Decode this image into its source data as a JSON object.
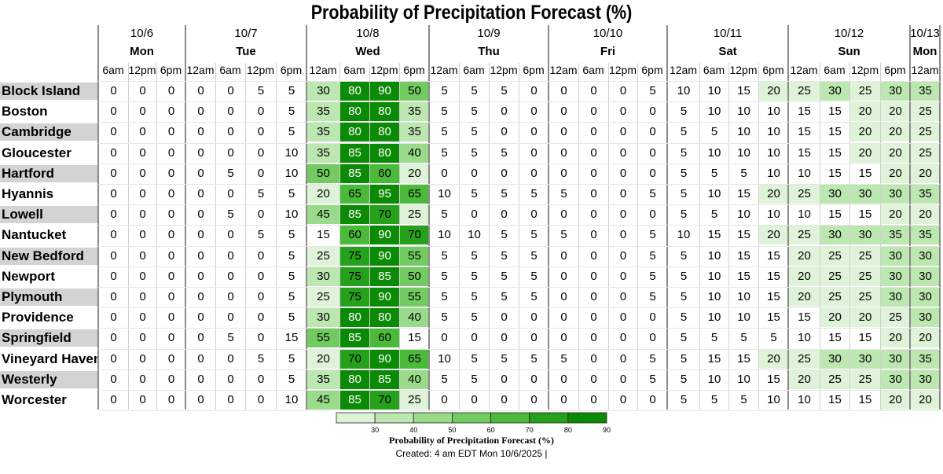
{
  "chart_data": {
    "type": "table",
    "title": "Probability of Precipitation Forecast (%)",
    "date_groups": [
      {
        "date": "10/6",
        "day": "Mon",
        "span": 3
      },
      {
        "date": "10/7",
        "day": "Tue",
        "span": 4
      },
      {
        "date": "10/8",
        "day": "Wed",
        "span": 4
      },
      {
        "date": "10/9",
        "day": "Thu",
        "span": 4
      },
      {
        "date": "10/10",
        "day": "Fri",
        "span": 4
      },
      {
        "date": "10/11",
        "day": "Sat",
        "span": 4
      },
      {
        "date": "10/12",
        "day": "Sun",
        "span": 4
      },
      {
        "date": "10/13",
        "day": "Mon",
        "span": 1
      }
    ],
    "times": [
      "6am",
      "12pm",
      "6pm",
      "12am",
      "6am",
      "12pm",
      "6pm",
      "12am",
      "6am",
      "12pm",
      "6pm",
      "12am",
      "6am",
      "12pm",
      "6pm",
      "12am",
      "6am",
      "12pm",
      "6pm",
      "12am",
      "6am",
      "12pm",
      "6pm",
      "12am",
      "6am",
      "12pm",
      "6pm",
      "12am"
    ],
    "rows": [
      {
        "city": "Block Island",
        "values": [
          0,
          0,
          0,
          0,
          0,
          5,
          5,
          30,
          80,
          90,
          50,
          5,
          5,
          5,
          0,
          0,
          0,
          0,
          5,
          10,
          10,
          15,
          20,
          25,
          30,
          25,
          30,
          35
        ]
      },
      {
        "city": "Boston",
        "values": [
          0,
          0,
          0,
          0,
          0,
          0,
          5,
          35,
          80,
          80,
          35,
          5,
          5,
          0,
          0,
          0,
          0,
          0,
          0,
          5,
          10,
          10,
          10,
          15,
          15,
          20,
          20,
          25
        ]
      },
      {
        "city": "Cambridge",
        "values": [
          0,
          0,
          0,
          0,
          0,
          0,
          5,
          35,
          80,
          80,
          35,
          5,
          5,
          0,
          0,
          0,
          0,
          0,
          0,
          5,
          5,
          10,
          10,
          15,
          15,
          20,
          20,
          25
        ]
      },
      {
        "city": "Gloucester",
        "values": [
          0,
          0,
          0,
          0,
          0,
          0,
          10,
          35,
          85,
          80,
          40,
          5,
          5,
          5,
          0,
          0,
          0,
          0,
          0,
          5,
          10,
          10,
          10,
          15,
          15,
          20,
          20,
          25
        ]
      },
      {
        "city": "Hartford",
        "values": [
          0,
          0,
          0,
          0,
          5,
          0,
          10,
          50,
          85,
          60,
          20,
          0,
          0,
          0,
          0,
          0,
          0,
          0,
          0,
          5,
          5,
          5,
          10,
          10,
          15,
          15,
          20,
          20
        ]
      },
      {
        "city": "Hyannis",
        "values": [
          0,
          0,
          0,
          0,
          0,
          5,
          5,
          20,
          65,
          95,
          65,
          10,
          5,
          5,
          5,
          5,
          0,
          0,
          5,
          5,
          10,
          15,
          20,
          25,
          30,
          30,
          30,
          35
        ]
      },
      {
        "city": "Lowell",
        "values": [
          0,
          0,
          0,
          0,
          5,
          0,
          10,
          45,
          85,
          70,
          25,
          5,
          0,
          0,
          0,
          0,
          0,
          0,
          0,
          5,
          5,
          10,
          10,
          10,
          15,
          15,
          20,
          20
        ]
      },
      {
        "city": "Nantucket",
        "values": [
          0,
          0,
          0,
          0,
          0,
          5,
          5,
          15,
          60,
          90,
          70,
          10,
          10,
          5,
          5,
          5,
          0,
          0,
          5,
          10,
          15,
          15,
          20,
          25,
          30,
          30,
          35,
          35
        ]
      },
      {
        "city": "New Bedford",
        "values": [
          0,
          0,
          0,
          0,
          0,
          0,
          5,
          25,
          75,
          90,
          55,
          5,
          5,
          5,
          5,
          0,
          0,
          0,
          5,
          5,
          10,
          15,
          15,
          20,
          25,
          25,
          30,
          30
        ]
      },
      {
        "city": "Newport",
        "values": [
          0,
          0,
          0,
          0,
          0,
          0,
          5,
          30,
          75,
          85,
          50,
          5,
          5,
          5,
          5,
          0,
          0,
          0,
          5,
          5,
          10,
          15,
          15,
          20,
          25,
          25,
          30,
          30
        ]
      },
      {
        "city": "Plymouth",
        "values": [
          0,
          0,
          0,
          0,
          0,
          0,
          5,
          25,
          75,
          90,
          55,
          5,
          5,
          5,
          5,
          0,
          0,
          0,
          5,
          5,
          10,
          10,
          15,
          20,
          25,
          25,
          30,
          30
        ]
      },
      {
        "city": "Providence",
        "values": [
          0,
          0,
          0,
          0,
          0,
          0,
          5,
          30,
          80,
          80,
          40,
          5,
          5,
          0,
          0,
          0,
          0,
          0,
          0,
          5,
          10,
          10,
          15,
          15,
          20,
          20,
          25,
          30
        ]
      },
      {
        "city": "Springfield",
        "values": [
          0,
          0,
          0,
          0,
          5,
          0,
          15,
          55,
          85,
          60,
          15,
          0,
          0,
          0,
          0,
          0,
          0,
          0,
          0,
          5,
          5,
          5,
          5,
          10,
          15,
          15,
          20,
          20
        ]
      },
      {
        "city": "Vineyard Haven",
        "values": [
          0,
          0,
          0,
          0,
          0,
          5,
          5,
          20,
          70,
          90,
          65,
          10,
          5,
          5,
          5,
          5,
          0,
          0,
          5,
          5,
          15,
          15,
          20,
          25,
          30,
          30,
          30,
          35
        ]
      },
      {
        "city": "Westerly",
        "values": [
          0,
          0,
          0,
          0,
          0,
          0,
          5,
          35,
          80,
          85,
          40,
          5,
          5,
          0,
          0,
          0,
          0,
          0,
          5,
          5,
          10,
          10,
          15,
          20,
          25,
          25,
          30,
          30
        ]
      },
      {
        "city": "Worcester",
        "values": [
          0,
          0,
          0,
          0,
          0,
          0,
          10,
          45,
          85,
          70,
          25,
          0,
          0,
          0,
          0,
          0,
          0,
          0,
          0,
          5,
          5,
          5,
          10,
          10,
          15,
          15,
          20,
          20
        ]
      }
    ],
    "legend": {
      "title": "Probability of Precipitation Forecast (%)",
      "ticks": [
        30,
        40,
        50,
        60,
        70,
        80,
        90
      ],
      "colors": [
        "#dff3d8",
        "#bde7b0",
        "#99db8a",
        "#72cb60",
        "#4bba3a",
        "#26a11b",
        "#0b8a05"
      ]
    }
  },
  "footer": {
    "created": "Created: 4 am EDT Mon 10/6/2025  |"
  }
}
